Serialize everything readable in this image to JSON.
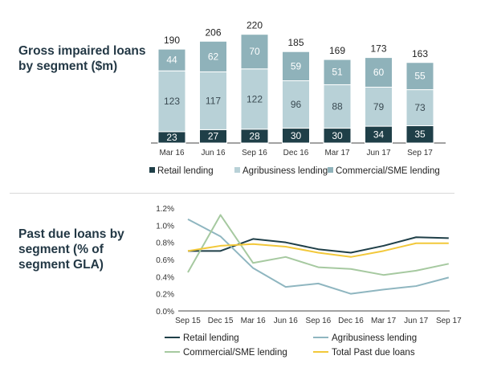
{
  "chart_data": [
    {
      "type": "bar",
      "stacked": true,
      "title": "Gross impaired loans by segment ($m)",
      "categories": [
        "Mar 16",
        "Jun 16",
        "Sep 16",
        "Dec 16",
        "Mar 17",
        "Jun 17",
        "Sep 17"
      ],
      "series": [
        {
          "name": "Retail lending",
          "values": [
            23,
            27,
            28,
            30,
            30,
            34,
            35
          ],
          "color": "#1f3f48"
        },
        {
          "name": "Agribusiness lending",
          "values": [
            123,
            117,
            122,
            96,
            88,
            79,
            73
          ],
          "color": "#b8d1d7"
        },
        {
          "name": "Commercial/SME lending",
          "values": [
            44,
            62,
            70,
            59,
            51,
            60,
            55
          ],
          "color": "#8fb2ba"
        }
      ],
      "totals": [
        190,
        206,
        220,
        185,
        169,
        173,
        163
      ],
      "legend": "bottom"
    },
    {
      "type": "line",
      "title": "Past due loans by segment (% of segment GLA)",
      "categories": [
        "Sep 15",
        "Dec 15",
        "Mar 16",
        "Jun 16",
        "Sep 16",
        "Dec 16",
        "Mar 17",
        "Jun 17",
        "Sep 17"
      ],
      "y_ticks": [
        "0.0%",
        "0.2%",
        "0.4%",
        "0.6%",
        "0.8%",
        "1.0%",
        "1.2%"
      ],
      "ylim": [
        0,
        1.2
      ],
      "series": [
        {
          "name": "Retail lending",
          "values": [
            0.7,
            0.7,
            0.84,
            0.8,
            0.72,
            0.68,
            0.76,
            0.86,
            0.85
          ],
          "color": "#1f3f48"
        },
        {
          "name": "Agribusiness lending",
          "values": [
            1.07,
            0.87,
            0.5,
            0.28,
            0.32,
            0.2,
            0.25,
            0.29,
            0.39
          ],
          "color": "#8fb6c0"
        },
        {
          "name": "Commercial/SME lending",
          "values": [
            0.45,
            1.12,
            0.56,
            0.63,
            0.51,
            0.49,
            0.42,
            0.47,
            0.55
          ],
          "color": "#a6c9a0"
        },
        {
          "name": "Total Past due loans",
          "values": [
            0.7,
            0.76,
            0.78,
            0.75,
            0.68,
            0.63,
            0.7,
            0.79,
            0.79
          ],
          "color": "#f2c83a"
        }
      ],
      "legend": "bottom"
    }
  ]
}
